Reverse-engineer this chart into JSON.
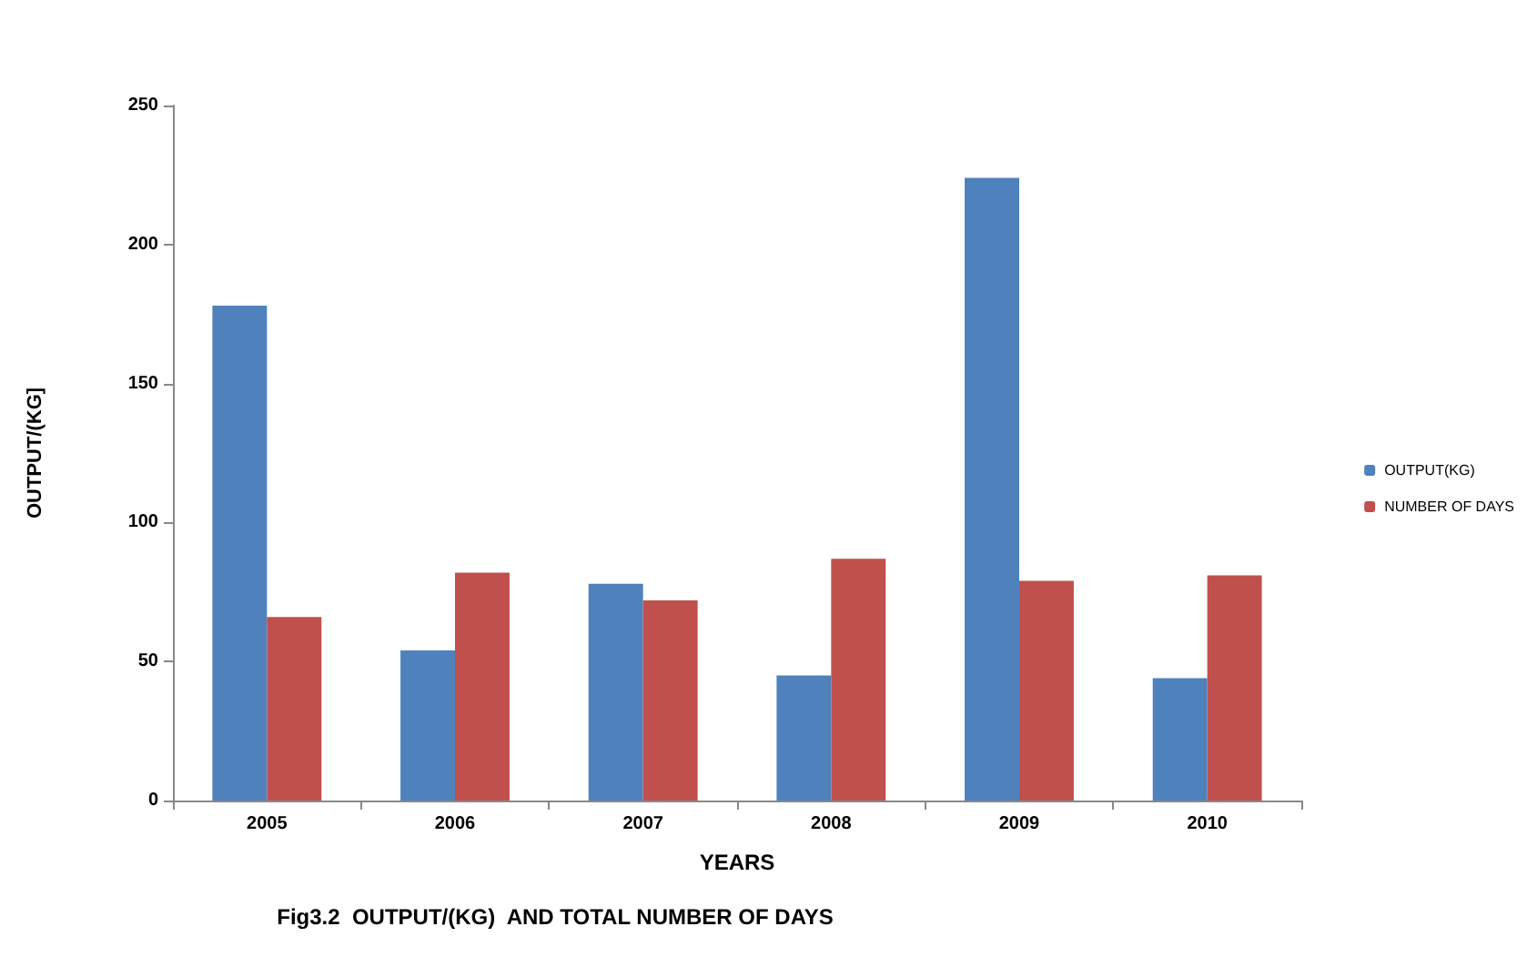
{
  "chart_data": {
    "type": "bar",
    "title": "Fig3.2  OUTPUT/(KG)  AND TOTAL NUMBER OF DAYS",
    "xlabel": "YEARS",
    "ylabel": "OUTPUT/(KG]",
    "categories": [
      "2005",
      "2006",
      "2007",
      "2008",
      "2009",
      "2010"
    ],
    "series": [
      {
        "name": "OUTPUT(KG)",
        "color": "#4f81bd",
        "values": [
          178,
          54,
          78,
          45,
          224,
          44
        ]
      },
      {
        "name": "NUMBER OF DAYS",
        "color": "#c0504d",
        "values": [
          66,
          82,
          72,
          87,
          79,
          81
        ]
      }
    ],
    "ylim": [
      0,
      250
    ],
    "yticks": [
      0,
      50,
      100,
      150,
      200,
      250
    ],
    "grid": false,
    "legend": "right"
  }
}
